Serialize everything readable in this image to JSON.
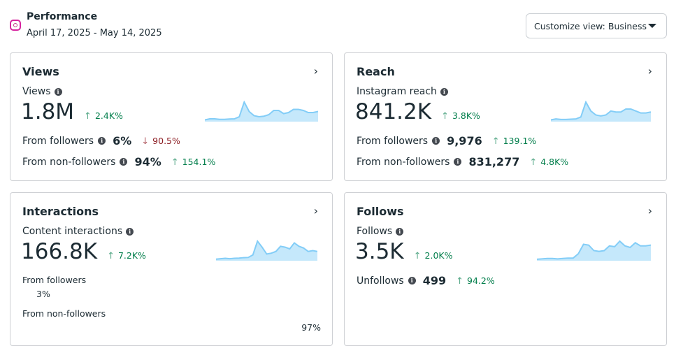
{
  "header": {
    "title": "Performance",
    "date_range": "April 17, 2025 - May 14, 2025",
    "icon": "instagram-icon"
  },
  "customize": {
    "label": "Customize view: Business"
  },
  "colors": {
    "up": "#007d4a",
    "down": "#8c1d23",
    "spark_line": "#83cdf7",
    "spark_fill": "#c5e8fb"
  },
  "views": {
    "title": "Views",
    "metric_label": "Views",
    "value": "1.8M",
    "change": "2.4K%",
    "followers_label": "From followers",
    "followers_value": "6%",
    "followers_change": "90.5%",
    "nonfollowers_label": "From non-followers",
    "nonfollowers_value": "94%",
    "nonfollowers_change": "154.1%",
    "spark": [
      1,
      2,
      2,
      1.5,
      1.5,
      1.8,
      2,
      4,
      18,
      9,
      5,
      4,
      4.5,
      6,
      10,
      10,
      7,
      8,
      11,
      11,
      10,
      8,
      8,
      9
    ]
  },
  "reach": {
    "title": "Reach",
    "metric_label": "Instagram reach",
    "value": "841.2K",
    "change": "3.8K%",
    "followers_label": "From followers",
    "followers_value": "9,976",
    "followers_change": "139.1%",
    "nonfollowers_label": "From non-followers",
    "nonfollowers_value": "831,277",
    "nonfollowers_change": "4.8K%",
    "spark": [
      1,
      2,
      1.5,
      1.5,
      1.8,
      2,
      4,
      19,
      10,
      6,
      5,
      6,
      10,
      9,
      9,
      12,
      12,
      10,
      8,
      8,
      9
    ]
  },
  "interactions": {
    "title": "Interactions",
    "metric_label": "Content interactions",
    "value": "166.8K",
    "change": "7.2K%",
    "followers_label": "From followers",
    "followers_value": "3%",
    "nonfollowers_label": "From non-followers",
    "nonfollowers_value": "97%",
    "spark": [
      1,
      1.5,
      2,
      1.5,
      2,
      2.2,
      2.8,
      3,
      6,
      22,
      15,
      7,
      8,
      10,
      16,
      15,
      13,
      20,
      16,
      14,
      10,
      11,
      10
    ]
  },
  "follows": {
    "title": "Follows",
    "metric_label": "Follows",
    "value": "3.5K",
    "change": "2.0K%",
    "unfollows_label": "Unfollows",
    "unfollows_value": "499",
    "unfollows_change": "94.2%",
    "spark": [
      1,
      1.5,
      2,
      2,
      1.5,
      2,
      2.5,
      2.5,
      8,
      20,
      19,
      12,
      11,
      12,
      18,
      17,
      24,
      18,
      16,
      22,
      18,
      18,
      19
    ]
  }
}
